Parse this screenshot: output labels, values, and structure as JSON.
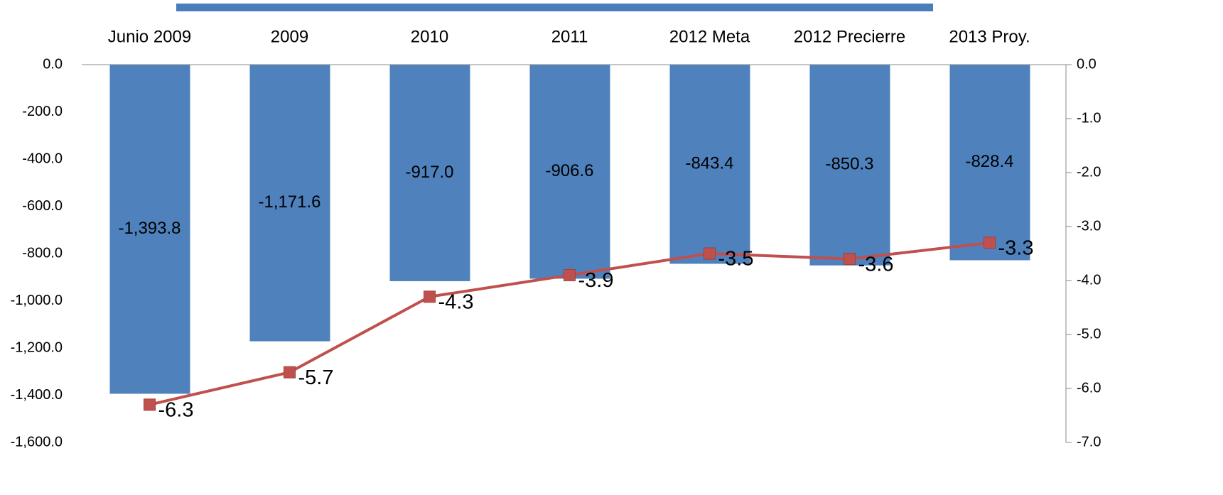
{
  "chart_data": {
    "type": "bar-line",
    "categories": [
      "Junio 2009",
      "2009",
      "2010",
      "2011",
      "2012 Meta",
      "2012 Precierre",
      "2013 Proy."
    ],
    "series": [
      {
        "type": "bar",
        "color": "#4f81bd",
        "values": [
          -1393.8,
          -1171.6,
          -917.0,
          -906.6,
          -843.4,
          -850.3,
          -828.4
        ],
        "value_labels": [
          "-1,393.8",
          "-1,171.6",
          "-917.0",
          "-906.6",
          "-843.4",
          "-850.3",
          "-828.4"
        ]
      },
      {
        "type": "line",
        "axis": "y2",
        "color": "#c0504d",
        "values": [
          -6.3,
          -5.7,
          -4.3,
          -3.9,
          -3.5,
          -3.6,
          -3.3
        ]
      }
    ],
    "ylim": [
      -1600,
      0
    ],
    "yticks": [
      {
        "value": 0,
        "label": "0.0"
      },
      {
        "value": -200,
        "label": "-200.0"
      },
      {
        "value": -400,
        "label": "-400.0"
      },
      {
        "value": -600,
        "label": "-600.0"
      },
      {
        "value": -800,
        "label": "-800.0"
      },
      {
        "value": -1000,
        "label": "-1,000.0"
      },
      {
        "value": -1200,
        "label": "-1,200.0"
      },
      {
        "value": -1400,
        "label": "-1,400.0"
      },
      {
        "value": -1600,
        "label": "-1,600.0"
      }
    ],
    "y2lim": [
      -7,
      0
    ],
    "y2ticks": [
      {
        "value": 0,
        "label": "0.0"
      },
      {
        "value": -1,
        "label": "-1.0"
      },
      {
        "value": -2,
        "label": "-2.0"
      },
      {
        "value": -3,
        "label": "-3.0"
      },
      {
        "value": -4,
        "label": "-4.0"
      },
      {
        "value": -5,
        "label": "-5.0"
      },
      {
        "value": -6,
        "label": "-6.0"
      },
      {
        "value": -7,
        "label": "-7.0"
      }
    ]
  }
}
